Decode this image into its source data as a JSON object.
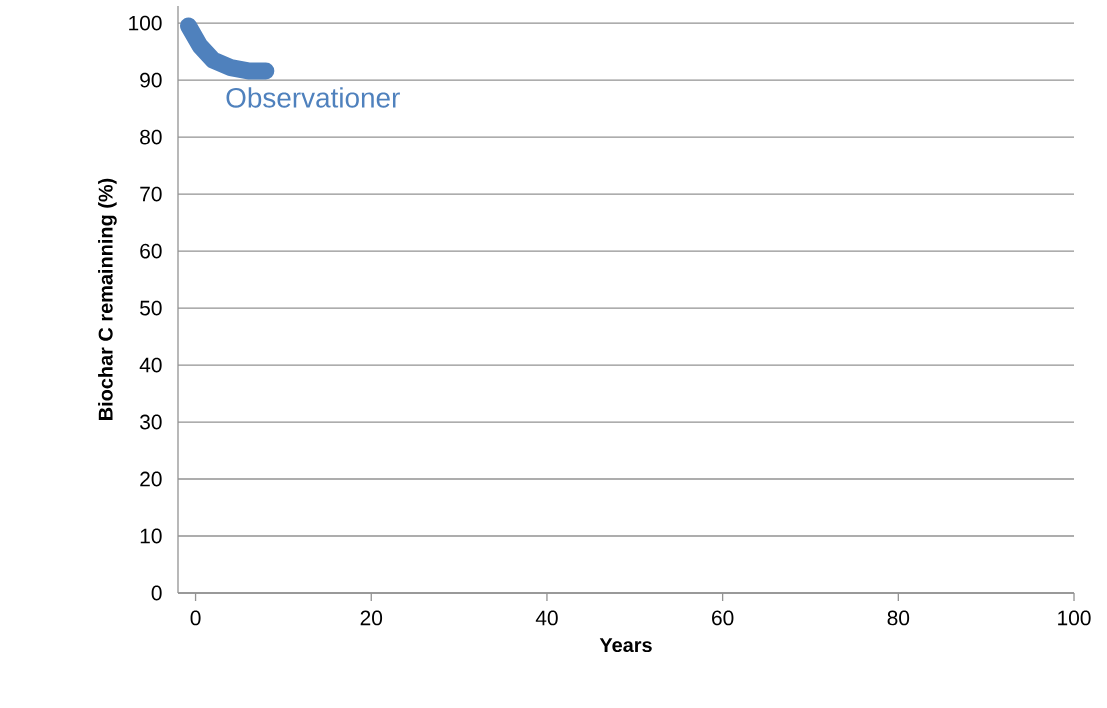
{
  "chart_data": {
    "type": "line",
    "xlabel": "Years",
    "ylabel": "Biochar C remainning (%)",
    "x": [
      -0.8,
      0.5,
      2,
      4,
      6,
      8
    ],
    "series": [
      {
        "name": "Observationer",
        "color": "#4f81bd",
        "values": [
          99.5,
          96,
          93.5,
          92.2,
          91.6,
          91.6
        ]
      }
    ],
    "xlim": [
      -2,
      100
    ],
    "ylim": [
      0,
      103
    ],
    "xticks": [
      0,
      20,
      40,
      60,
      80,
      100
    ],
    "yticks": [
      0,
      10,
      20,
      30,
      40,
      50,
      60,
      70,
      80,
      90,
      100
    ],
    "grid": "y",
    "marker": "none",
    "line_style": "solid",
    "legend": false
  }
}
